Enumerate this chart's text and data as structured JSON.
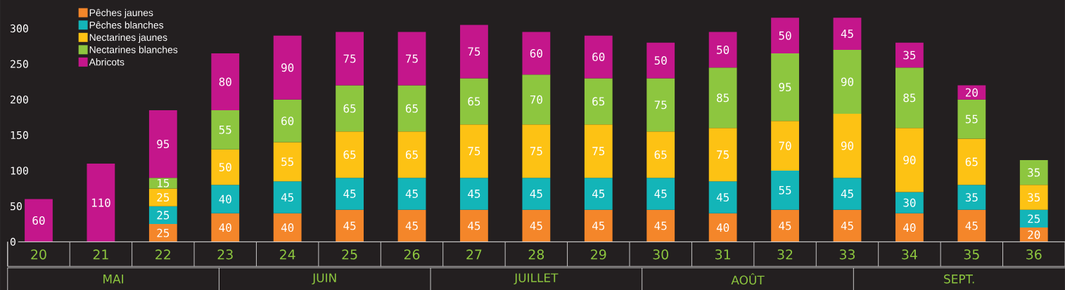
{
  "chart_data": {
    "type": "bar",
    "stacked": true,
    "data_labels": true,
    "legend": "top left",
    "categories": [
      "20",
      "21",
      "22",
      "23",
      "24",
      "25",
      "26",
      "27",
      "28",
      "29",
      "30",
      "31",
      "32",
      "33",
      "34",
      "35",
      "36"
    ],
    "series": [
      {
        "name": "Pêches jaunes",
        "color": "#f4862a",
        "values": [
          null,
          null,
          25,
          40,
          40,
          45,
          45,
          45,
          45,
          45,
          45,
          40,
          45,
          45,
          40,
          45,
          20
        ]
      },
      {
        "name": "Pêches blanches",
        "color": "#13b5b8",
        "values": [
          null,
          null,
          25,
          40,
          45,
          45,
          45,
          45,
          45,
          45,
          45,
          45,
          55,
          45,
          30,
          35,
          25
        ]
      },
      {
        "name": "Nectarines jaunes",
        "color": "#fdc214",
        "values": [
          null,
          null,
          25,
          50,
          55,
          65,
          65,
          75,
          75,
          75,
          65,
          75,
          70,
          90,
          90,
          65,
          35
        ]
      },
      {
        "name": "Nectarines blanches",
        "color": "#8dc63f",
        "values": [
          null,
          null,
          15,
          55,
          60,
          65,
          65,
          65,
          70,
          65,
          75,
          85,
          95,
          90,
          85,
          55,
          35
        ]
      },
      {
        "name": "Abricots",
        "color": "#c4168b",
        "values": [
          60,
          110,
          95,
          80,
          90,
          75,
          75,
          75,
          60,
          60,
          50,
          50,
          50,
          45,
          35,
          20,
          null
        ]
      }
    ],
    "ylim": [
      0,
      340
    ],
    "yticks": [
      0,
      50,
      100,
      150,
      200,
      250,
      300
    ],
    "annotations": [
      "MAI",
      "JUIN",
      "JUILLET",
      "AOÛT",
      "SEPT."
    ]
  }
}
